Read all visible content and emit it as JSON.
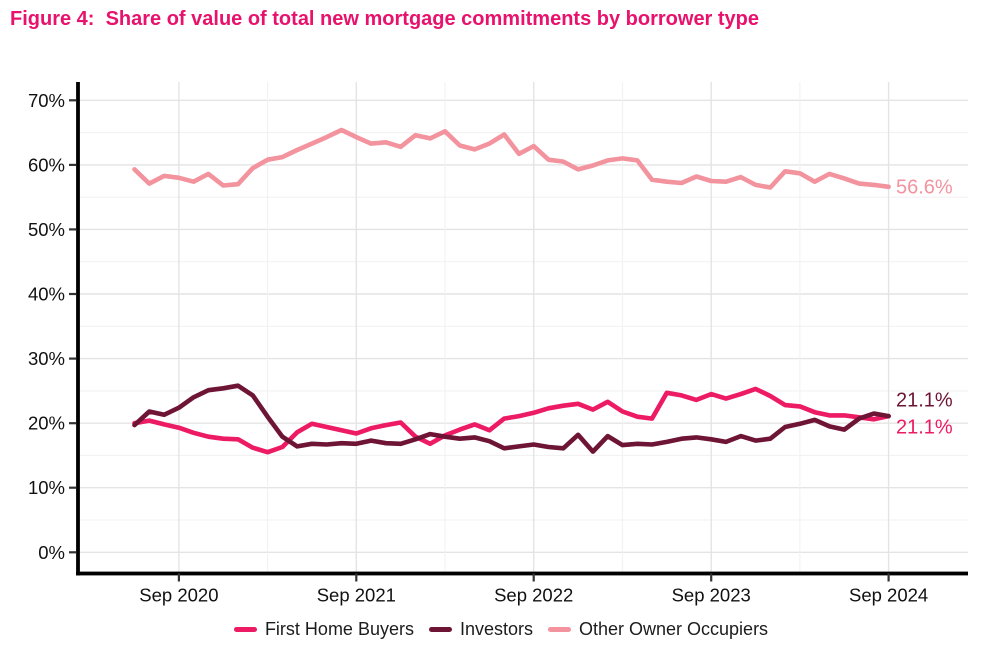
{
  "figure": {
    "title": "Figure 4:  Share of value of total new mortgage commitments by borrower type"
  },
  "colors": {
    "title": "#e8126d",
    "axis_text": "#111111",
    "tick_mark": "#333333",
    "spine": "#000000",
    "grid_major": "#e4e4e4",
    "grid_minor": "#f2f2f2",
    "background": "#ffffff"
  },
  "chart_data": {
    "type": "line",
    "title": "Figure 4:  Share of value of total new mortgage commitments by borrower type",
    "xlabel": "",
    "ylabel": "",
    "y_unit": "%",
    "ylim": [
      0,
      70
    ],
    "y_major_tick_step": 10,
    "y_minor_grid_step": 5,
    "grid": "major+minor",
    "legend_position": "bottom",
    "x": [
      "Jun 2020",
      "Jul 2020",
      "Aug 2020",
      "Sep 2020",
      "Oct 2020",
      "Nov 2020",
      "Dec 2020",
      "Jan 2021",
      "Feb 2021",
      "Mar 2021",
      "Apr 2021",
      "May 2021",
      "Jun 2021",
      "Jul 2021",
      "Aug 2021",
      "Sep 2021",
      "Oct 2021",
      "Nov 2021",
      "Dec 2021",
      "Jan 2022",
      "Feb 2022",
      "Mar 2022",
      "Apr 2022",
      "May 2022",
      "Jun 2022",
      "Jul 2022",
      "Aug 2022",
      "Sep 2022",
      "Oct 2022",
      "Nov 2022",
      "Dec 2022",
      "Jan 2023",
      "Feb 2023",
      "Mar 2023",
      "Apr 2023",
      "May 2023",
      "Jun 2023",
      "Jul 2023",
      "Aug 2023",
      "Sep 2023",
      "Oct 2023",
      "Nov 2023",
      "Dec 2023",
      "Jan 2024",
      "Feb 2024",
      "Mar 2024",
      "Apr 2024",
      "May 2024",
      "Jun 2024",
      "Jul 2024",
      "Aug 2024",
      "Sep 2024"
    ],
    "x_tick_labels": [
      "Sep 2020",
      "Sep 2021",
      "Sep 2022",
      "Sep 2023",
      "Sep 2024"
    ],
    "x_tick_indices": [
      3,
      15,
      27,
      39,
      51
    ],
    "x_minor_tick_indices": [
      9,
      21,
      33,
      45
    ],
    "series": [
      {
        "name": "First Home Buyers",
        "color": "#ed1a64",
        "end_label": "21.1%",
        "values": [
          20.0,
          20.4,
          19.8,
          19.3,
          18.5,
          17.9,
          17.6,
          17.5,
          16.2,
          15.5,
          16.3,
          18.6,
          19.9,
          19.4,
          18.9,
          18.4,
          19.2,
          19.7,
          20.1,
          17.9,
          16.8,
          18.1,
          19.0,
          19.8,
          18.9,
          20.7,
          21.1,
          21.6,
          22.3,
          22.7,
          23.0,
          22.1,
          23.3,
          21.8,
          21.0,
          20.7,
          24.7,
          24.3,
          23.6,
          24.5,
          23.8,
          24.5,
          25.3,
          24.2,
          22.8,
          22.6,
          21.7,
          21.2,
          21.2,
          20.9,
          20.6,
          21.1
        ]
      },
      {
        "name": "Investors",
        "color": "#6e1435",
        "end_label": "21.1%",
        "values": [
          19.7,
          21.8,
          21.3,
          22.4,
          24.0,
          25.1,
          25.4,
          25.8,
          24.3,
          21.0,
          17.9,
          16.4,
          16.8,
          16.7,
          16.9,
          16.8,
          17.3,
          16.9,
          16.8,
          17.5,
          18.3,
          17.9,
          17.6,
          17.8,
          17.2,
          16.1,
          16.4,
          16.7,
          16.3,
          16.1,
          18.2,
          15.6,
          18.0,
          16.6,
          16.8,
          16.7,
          17.1,
          17.6,
          17.8,
          17.5,
          17.1,
          18.0,
          17.3,
          17.6,
          19.4,
          19.9,
          20.5,
          19.5,
          19.0,
          20.7,
          21.5,
          21.1
        ]
      },
      {
        "name": "Other Owner Occupiers",
        "color": "#f2939e",
        "end_label": "56.6%",
        "values": [
          59.3,
          57.1,
          58.3,
          58.0,
          57.4,
          58.6,
          56.8,
          57.0,
          59.5,
          60.8,
          61.2,
          62.3,
          63.3,
          64.3,
          65.4,
          64.3,
          63.3,
          63.5,
          62.8,
          64.6,
          64.1,
          65.2,
          63.0,
          62.4,
          63.3,
          64.7,
          61.7,
          62.9,
          60.8,
          60.5,
          59.3,
          59.9,
          60.7,
          61.0,
          60.7,
          57.7,
          57.4,
          57.2,
          58.2,
          57.5,
          57.4,
          58.1,
          56.9,
          56.5,
          59.0,
          58.7,
          57.4,
          58.6,
          57.9,
          57.1,
          56.9,
          56.6
        ]
      }
    ]
  }
}
